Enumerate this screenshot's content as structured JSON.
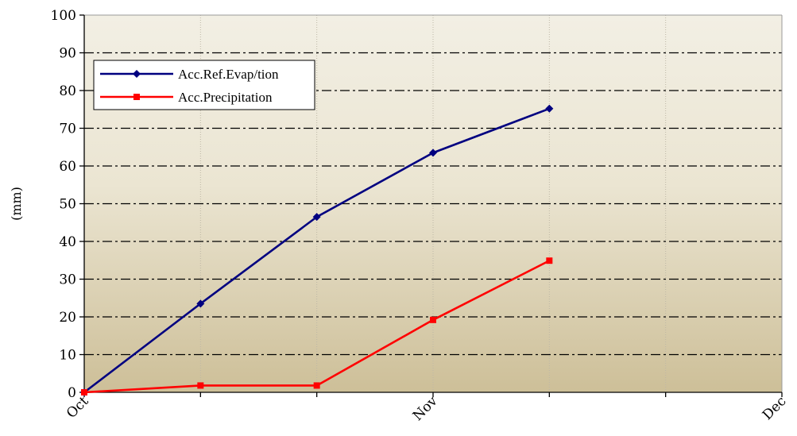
{
  "chart_data": {
    "type": "line",
    "title": "",
    "xlabel": "",
    "ylabel": "(mm)",
    "ylim": [
      0,
      100
    ],
    "yticks": [
      0,
      10,
      20,
      30,
      40,
      50,
      60,
      70,
      80,
      90,
      100
    ],
    "x_positions": [
      0,
      1,
      2,
      3,
      4
    ],
    "xlim": [
      0,
      6
    ],
    "xtick_positions": [
      0,
      3,
      6
    ],
    "xtick_labels": [
      "Oct",
      "Nov",
      "Dec"
    ],
    "grid": {
      "horizontal": true,
      "vertical": true
    },
    "legend_position": "top-left",
    "series": [
      {
        "name": "Acc.Ref.Evap/tion",
        "color": "#000080",
        "marker": "diamond",
        "values": [
          0,
          23.5,
          46.5,
          63.5,
          75.2
        ]
      },
      {
        "name": "Acc.Precipitation",
        "color": "#ff0000",
        "marker": "square",
        "values": [
          0,
          1.8,
          1.8,
          19.2,
          34.9
        ]
      }
    ],
    "colors": {
      "plot_top": "#f2efe4",
      "plot_bottom": "#cdbf98",
      "grid": "#000000"
    }
  }
}
